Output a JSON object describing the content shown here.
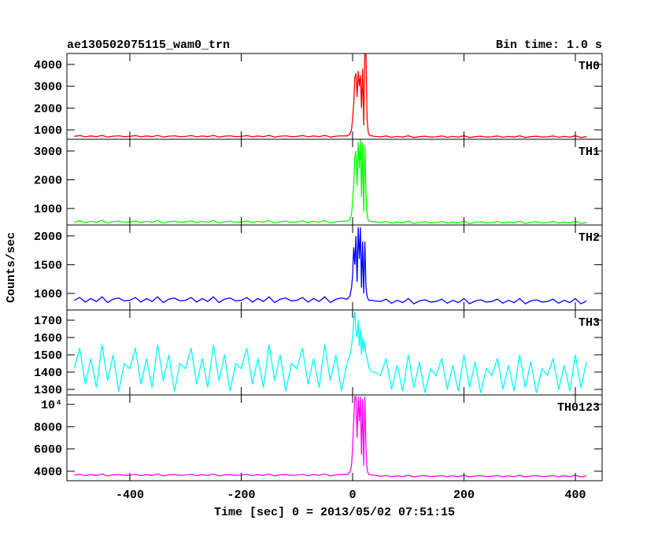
{
  "chart_data": {
    "type": "line",
    "title": "ae130502075115_wam0_trn",
    "subtitle": "Bin time: 1.0 s",
    "xlabel": "Time [sec] 0 = 2013/05/02 07:51:15",
    "ylabel": "Counts/sec",
    "xlim": [
      -513,
      448
    ],
    "xticks": [
      -400,
      -200,
      0,
      200,
      400
    ],
    "x": [
      -500,
      -490,
      -480,
      -470,
      -460,
      -450,
      -440,
      -430,
      -420,
      -410,
      -400,
      -390,
      -380,
      -370,
      -360,
      -350,
      -340,
      -330,
      -320,
      -310,
      -300,
      -290,
      -280,
      -270,
      -260,
      -250,
      -240,
      -230,
      -220,
      -210,
      -200,
      -190,
      -180,
      -170,
      -160,
      -150,
      -140,
      -130,
      -120,
      -110,
      -100,
      -90,
      -80,
      -70,
      -60,
      -50,
      -40,
      -30,
      -20,
      -10,
      -5,
      -2,
      0,
      2,
      4,
      6,
      8,
      10,
      12,
      14,
      16,
      18,
      20,
      22,
      24,
      26,
      28,
      30,
      35,
      40,
      50,
      60,
      70,
      80,
      90,
      100,
      110,
      120,
      130,
      140,
      150,
      160,
      170,
      180,
      190,
      200,
      210,
      220,
      230,
      240,
      250,
      260,
      270,
      280,
      290,
      300,
      310,
      320,
      330,
      340,
      350,
      360,
      370,
      380,
      390,
      400,
      410,
      420
    ],
    "panels": [
      {
        "name": "TH0",
        "color": "#ff0000",
        "ylim": [
          570,
          4500
        ],
        "yticks": [
          1000,
          2000,
          3000,
          4000
        ],
        "values": [
          700,
          740,
          680,
          720,
          690,
          750,
          670,
          710,
          730,
          690,
          700,
          740,
          680,
          720,
          690,
          750,
          670,
          710,
          730,
          690,
          700,
          740,
          680,
          720,
          690,
          750,
          670,
          710,
          730,
          690,
          700,
          740,
          680,
          720,
          690,
          750,
          670,
          710,
          730,
          690,
          700,
          740,
          680,
          720,
          690,
          750,
          670,
          710,
          730,
          720,
          800,
          1000,
          1500,
          2200,
          3400,
          3600,
          2500,
          3700,
          3000,
          3500,
          2000,
          3800,
          1200,
          4600,
          4600,
          1500,
          900,
          760,
          720,
          700,
          680,
          720,
          660,
          700,
          670,
          730,
          650,
          690,
          710,
          670,
          680,
          720,
          660,
          700,
          670,
          730,
          650,
          690,
          710,
          670,
          680,
          720,
          660,
          700,
          670,
          730,
          650,
          690,
          710,
          670,
          680,
          720,
          660,
          700,
          670,
          730,
          650,
          690
        ]
      },
      {
        "name": "TH1",
        "color": "#00ff00",
        "ylim": [
          425,
          3410
        ],
        "yticks": [
          1000,
          2000,
          3000
        ],
        "values": [
          530,
          570,
          510,
          550,
          520,
          580,
          500,
          540,
          560,
          520,
          530,
          570,
          510,
          550,
          520,
          580,
          500,
          540,
          560,
          520,
          530,
          570,
          510,
          550,
          520,
          580,
          500,
          540,
          560,
          520,
          530,
          570,
          510,
          550,
          520,
          580,
          500,
          540,
          560,
          520,
          530,
          570,
          510,
          550,
          520,
          580,
          500,
          540,
          560,
          560,
          600,
          800,
          1200,
          1800,
          2800,
          3000,
          1800,
          3300,
          2400,
          3400,
          1400,
          3300,
          900,
          3200,
          1500,
          800,
          600,
          560,
          550,
          540,
          510,
          550,
          490,
          530,
          500,
          560,
          480,
          520,
          540,
          500,
          510,
          550,
          490,
          530,
          500,
          560,
          480,
          520,
          540,
          500,
          510,
          550,
          490,
          530,
          500,
          560,
          480,
          520,
          540,
          500,
          510,
          550,
          490,
          530,
          500,
          560,
          480,
          520
        ]
      },
      {
        "name": "TH2",
        "color": "#0000ff",
        "ylim": [
          712,
          2190
        ],
        "yticks": [
          1000,
          1500,
          2000
        ],
        "values": [
          880,
          930,
          850,
          910,
          860,
          940,
          840,
          900,
          920,
          870,
          880,
          930,
          850,
          910,
          860,
          940,
          840,
          900,
          920,
          870,
          880,
          930,
          850,
          910,
          860,
          940,
          840,
          900,
          920,
          870,
          880,
          930,
          850,
          910,
          860,
          940,
          840,
          900,
          920,
          870,
          880,
          930,
          850,
          910,
          860,
          940,
          840,
          900,
          920,
          900,
          950,
          1100,
          1300,
          1800,
          1500,
          2000,
          1200,
          2150,
          1600,
          2150,
          1100,
          1900,
          1000,
          1900,
          1100,
          950,
          900,
          880,
          880,
          870,
          860,
          900,
          830,
          880,
          840,
          910,
          820,
          870,
          890,
          850,
          860,
          900,
          830,
          880,
          840,
          910,
          820,
          870,
          890,
          850,
          860,
          900,
          830,
          880,
          840,
          910,
          820,
          870,
          890,
          850,
          860,
          900,
          830,
          880,
          840,
          910,
          820,
          870
        ]
      },
      {
        "name": "TH3",
        "color": "#00ffff",
        "ylim": [
          1268,
          1759
        ],
        "yticks": [
          1300,
          1400,
          1500,
          1600,
          1700
        ],
        "values": [
          1420,
          1540,
          1330,
          1480,
          1310,
          1560,
          1350,
          1500,
          1290,
          1450,
          1420,
          1540,
          1330,
          1480,
          1310,
          1560,
          1350,
          1500,
          1290,
          1450,
          1420,
          1540,
          1330,
          1480,
          1310,
          1560,
          1350,
          1500,
          1290,
          1450,
          1420,
          1540,
          1330,
          1480,
          1310,
          1560,
          1350,
          1500,
          1290,
          1450,
          1420,
          1540,
          1330,
          1480,
          1310,
          1560,
          1350,
          1500,
          1290,
          1450,
          1500,
          1550,
          1600,
          1700,
          1750,
          1650,
          1600,
          1700,
          1550,
          1650,
          1500,
          1600,
          1520,
          1580,
          1500,
          1480,
          1450,
          1420,
          1400,
          1400,
          1380,
          1480,
          1300,
          1440,
          1290,
          1500,
          1310,
          1460,
          1280,
          1420,
          1380,
          1480,
          1300,
          1440,
          1290,
          1500,
          1310,
          1460,
          1280,
          1420,
          1380,
          1480,
          1300,
          1440,
          1290,
          1500,
          1310,
          1460,
          1280,
          1420,
          1380,
          1480,
          1300,
          1440,
          1290,
          1500,
          1310,
          1460
        ]
      },
      {
        "name": "TH0123",
        "color": "#ff00ff",
        "ylim": [
          3150,
          10850
        ],
        "yticks": [
          4000,
          6000,
          8000,
          {
            "value": 10000,
            "label": "10⁴"
          }
        ],
        "values": [
          3650,
          3720,
          3600,
          3700,
          3620,
          3750,
          3580,
          3680,
          3710,
          3630,
          3650,
          3720,
          3600,
          3700,
          3620,
          3750,
          3580,
          3680,
          3710,
          3630,
          3650,
          3720,
          3600,
          3700,
          3620,
          3750,
          3580,
          3680,
          3710,
          3630,
          3650,
          3720,
          3600,
          3700,
          3620,
          3750,
          3580,
          3680,
          3710,
          3630,
          3650,
          3720,
          3600,
          3700,
          3620,
          3750,
          3580,
          3680,
          3710,
          3700,
          3900,
          4500,
          6000,
          8500,
          10700,
          10700,
          7000,
          10700,
          8500,
          10700,
          5500,
          10500,
          4500,
          10700,
          6000,
          4200,
          3800,
          3700,
          3650,
          3650,
          3550,
          3610,
          3500,
          3590,
          3520,
          3640,
          3480,
          3580,
          3600,
          3530,
          3550,
          3610,
          3500,
          3590,
          3520,
          3640,
          3480,
          3580,
          3600,
          3530,
          3550,
          3610,
          3500,
          3590,
          3520,
          3640,
          3480,
          3580,
          3600,
          3530,
          3550,
          3610,
          3500,
          3590,
          3520,
          3640,
          3480,
          3580
        ]
      }
    ]
  }
}
